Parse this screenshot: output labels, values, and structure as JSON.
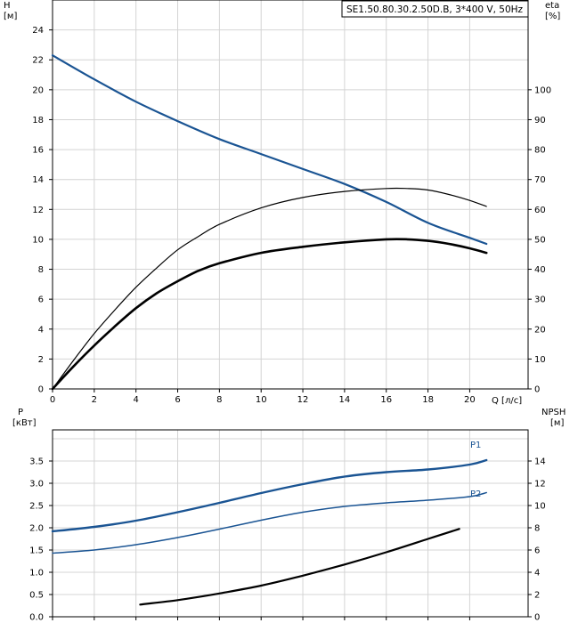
{
  "chart_data": [
    {
      "type": "line",
      "title": "SE1.50.80.30.2.50D.B, 3*400 V, 50Hz",
      "xlabel": "Q [л/с]",
      "ylabel": "H",
      "ylabel_unit": "[м]",
      "y2label": "eta",
      "y2label_unit": "[%]",
      "xlim": [
        0,
        22.8
      ],
      "ylim": [
        0,
        26
      ],
      "y2lim": [
        0,
        130
      ],
      "x_ticks": [
        0,
        2,
        4,
        6,
        8,
        10,
        12,
        14,
        16,
        18,
        20
      ],
      "y_ticks": [
        0,
        2,
        4,
        6,
        8,
        10,
        12,
        14,
        16,
        18,
        20,
        22,
        24
      ],
      "y2_ticks": [
        0,
        10,
        20,
        30,
        40,
        50,
        60,
        70,
        80,
        90,
        100
      ],
      "grid": true,
      "series": [
        {
          "key": "H",
          "color": "#1a5493",
          "axis": "left",
          "points": [
            [
              0,
              22.3
            ],
            [
              2,
              20.7
            ],
            [
              4,
              19.2
            ],
            [
              6,
              17.9
            ],
            [
              8,
              16.7
            ],
            [
              10,
              15.7
            ],
            [
              12,
              14.7
            ],
            [
              14,
              13.7
            ],
            [
              16,
              12.5
            ],
            [
              18,
              11.1
            ],
            [
              20,
              10.1
            ],
            [
              20.8,
              9.7
            ]
          ]
        },
        {
          "key": "eta_thin",
          "color": "#000000",
          "axis": "right",
          "points": [
            [
              0,
              0
            ],
            [
              1,
              9.5
            ],
            [
              2,
              18.5
            ],
            [
              3,
              26.5
            ],
            [
              4,
              34
            ],
            [
              5,
              40.5
            ],
            [
              6,
              46.5
            ],
            [
              7,
              51
            ],
            [
              8,
              55
            ],
            [
              10,
              60.5
            ],
            [
              12,
              64
            ],
            [
              14,
              66
            ],
            [
              16,
              67
            ],
            [
              17,
              67
            ],
            [
              18,
              66.5
            ],
            [
              19,
              65
            ],
            [
              20,
              63
            ],
            [
              20.8,
              61
            ]
          ]
        },
        {
          "key": "eta_thick",
          "color": "#000000",
          "axis": "right",
          "points": [
            [
              0,
              0
            ],
            [
              1,
              7.5
            ],
            [
              2,
              14.5
            ],
            [
              3,
              21
            ],
            [
              4,
              27
            ],
            [
              5,
              32
            ],
            [
              6,
              36
            ],
            [
              7,
              39.5
            ],
            [
              8,
              42
            ],
            [
              10,
              45.5
            ],
            [
              12,
              47.5
            ],
            [
              14,
              49
            ],
            [
              16,
              50
            ],
            [
              17,
              50
            ],
            [
              18,
              49.5
            ],
            [
              19,
              48.5
            ],
            [
              20,
              47
            ],
            [
              20.8,
              45.5
            ]
          ]
        }
      ]
    },
    {
      "type": "line",
      "ylabel": "P",
      "ylabel_unit": "[кВт]",
      "y2label": "NPSH",
      "y2label_unit": "[м]",
      "xlim": [
        0,
        22.8
      ],
      "ylim": [
        0,
        4.2
      ],
      "y2lim": [
        0,
        16.8
      ],
      "y_ticks": [
        0.0,
        0.5,
        1.0,
        1.5,
        2.0,
        2.5,
        3.0,
        3.5
      ],
      "y_tick_labels": [
        "0.0",
        "0.5",
        "1.0",
        "1.5",
        "2.0",
        "2.5",
        "3.0",
        "3.5"
      ],
      "y2_ticks": [
        0,
        2,
        4,
        6,
        8,
        10,
        12,
        14
      ],
      "grid": true,
      "series": [
        {
          "name": "P1",
          "label": "P1",
          "color": "#1a5493",
          "axis": "left",
          "points": [
            [
              0,
              1.92
            ],
            [
              2,
              2.02
            ],
            [
              4,
              2.16
            ],
            [
              6,
              2.35
            ],
            [
              8,
              2.56
            ],
            [
              10,
              2.78
            ],
            [
              12,
              2.98
            ],
            [
              14,
              3.15
            ],
            [
              16,
              3.25
            ],
            [
              18,
              3.31
            ],
            [
              20,
              3.42
            ],
            [
              20.8,
              3.52
            ]
          ]
        },
        {
          "name": "P2",
          "label": "P2",
          "color": "#1a5493",
          "axis": "left",
          "points": [
            [
              0,
              1.43
            ],
            [
              2,
              1.5
            ],
            [
              4,
              1.62
            ],
            [
              6,
              1.78
            ],
            [
              8,
              1.97
            ],
            [
              10,
              2.17
            ],
            [
              12,
              2.35
            ],
            [
              14,
              2.48
            ],
            [
              16,
              2.56
            ],
            [
              18,
              2.62
            ],
            [
              20,
              2.7
            ],
            [
              20.8,
              2.79
            ]
          ]
        },
        {
          "key": "NPSH",
          "color": "#000000",
          "axis": "right",
          "points": [
            [
              4.2,
              1.1
            ],
            [
              6,
              1.5
            ],
            [
              8,
              2.1
            ],
            [
              10,
              2.8
            ],
            [
              12,
              3.7
            ],
            [
              14,
              4.7
            ],
            [
              16,
              5.8
            ],
            [
              18,
              7.0
            ],
            [
              19.5,
              7.9
            ]
          ]
        }
      ]
    }
  ]
}
